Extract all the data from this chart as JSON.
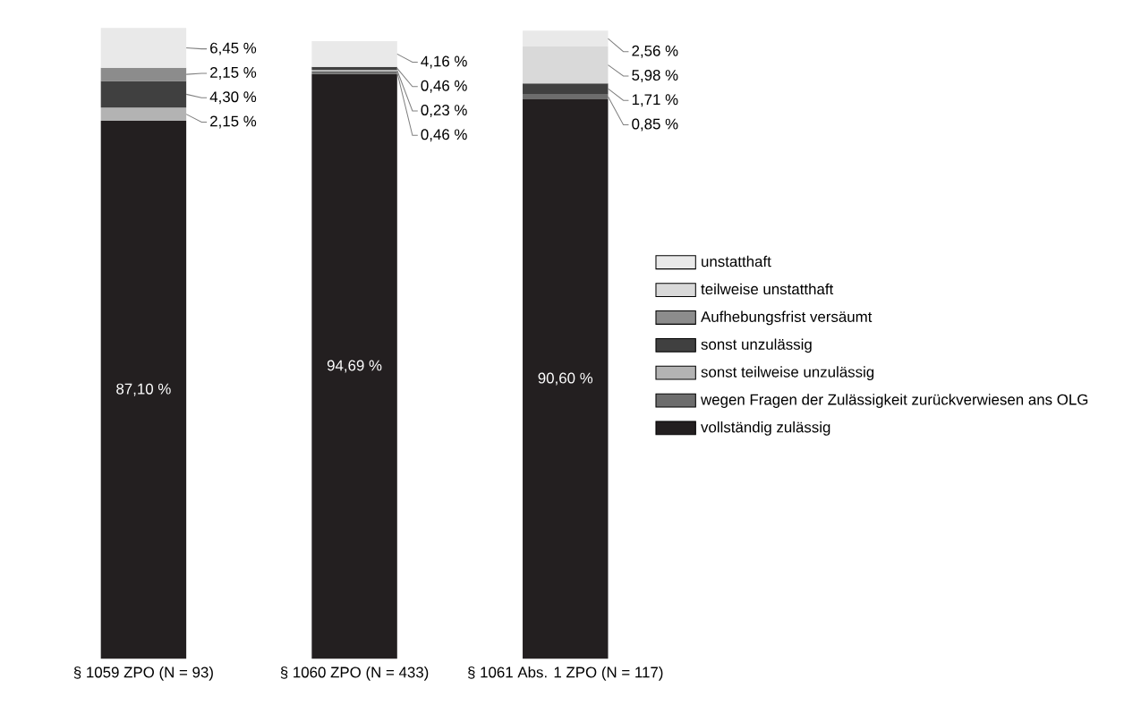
{
  "chart_data": {
    "type": "bar",
    "stacked": true,
    "legend": "right",
    "categories": [
      "§ 1059 ZPO (N = 93)",
      "§ 1060 ZPO (N = 433)",
      "§ 1061 Abs. 1 ZPO (N = 117)"
    ],
    "series": [
      {
        "name": "vollständig zulässig",
        "color": "#231f20",
        "values": [
          87.1,
          94.69,
          90.6
        ],
        "value_labels": [
          "87,10 %",
          "94,69 %",
          "90,60 %"
        ]
      },
      {
        "name": "wegen Fragen der Zulässigkeit zurückverwiesen ans OLG",
        "color": "#6d6d6d",
        "values": [
          null,
          0.46,
          0.85
        ],
        "value_labels": [
          null,
          "0,46 %",
          "0,85 %"
        ]
      },
      {
        "name": "sonst teilweise unzulässig",
        "color": "#b3b3b3",
        "values": [
          2.15,
          0.23,
          null
        ],
        "value_labels": [
          "2,15 %",
          "0,23 %",
          null
        ]
      },
      {
        "name": "sonst unzulässig",
        "color": "#404040",
        "values": [
          4.3,
          0.46,
          1.71
        ],
        "value_labels": [
          "4,30 %",
          "0,46 %",
          "1,71 %"
        ]
      },
      {
        "name": "Aufhebungsfrist versäumt",
        "color": "#8c8c8c",
        "values": [
          2.15,
          null,
          null
        ],
        "value_labels": [
          "2,15 %",
          null,
          null
        ]
      },
      {
        "name": "teilweise unstatthaft",
        "color": "#d9d9d9",
        "values": [
          null,
          null,
          5.98
        ],
        "value_labels": [
          null,
          null,
          "5,98 %"
        ]
      },
      {
        "name": "unstatthaft",
        "color": "#e9e9e9",
        "values": [
          6.45,
          4.16,
          2.56
        ],
        "value_labels": [
          "6,45 %",
          "4,16 %",
          "2,56 %"
        ]
      }
    ]
  }
}
